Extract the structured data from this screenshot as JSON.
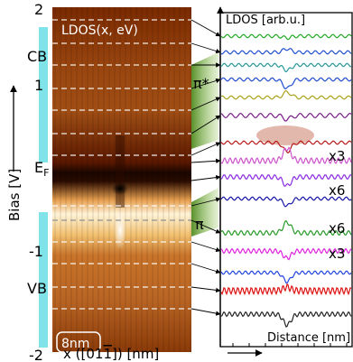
{
  "figure": {
    "map_label": "LDOS(x, eV)",
    "scale_bar": "8nm",
    "y_axis_label": "Bias [V]",
    "x_axis_label": "x ([01ī1]) [nm]",
    "y_ticks": [
      "2",
      "1",
      "-1",
      "-2"
    ],
    "fermi_label": "Eₙ",
    "band_labels": {
      "cb": "CB",
      "vb": "VB",
      "pi_star": "π*",
      "pi": "π"
    },
    "panel_label": "LDOS [arb.u.]",
    "panel_xlabel": "Distance [nm]",
    "multipliers": [
      "x3",
      "x6",
      "x6",
      "x3"
    ]
  },
  "chart_data": [
    {
      "type": "heatmap",
      "title": "LDOS(x, eV)",
      "xlabel": "x ([01ī1]) [nm]",
      "ylabel": "Bias [V]",
      "ylim": [
        -2,
        2
      ],
      "y_ticks": [
        2,
        1,
        -1,
        -2
      ],
      "annotations": [
        "CB",
        "VB",
        "E_F",
        "π*",
        "π",
        "8nm"
      ]
    },
    {
      "type": "line",
      "ylabel": "LDOS [arb.u.]",
      "xlabel": "Distance [nm]",
      "series_colors": [
        "#22aa22",
        "#1f4fd0",
        "#2a9a9a",
        "#1f4fd0",
        "#a9a21a",
        "#7a1a8a",
        "#b81818",
        "#cc55cc",
        "#8a2be2",
        "#1a1aa8",
        "#2a9a2a",
        "#dd22dd",
        "#2244dd",
        "#dd1111",
        "#222222"
      ],
      "multipliers": [
        "x3",
        "x6",
        "x6",
        "x3"
      ]
    }
  ]
}
